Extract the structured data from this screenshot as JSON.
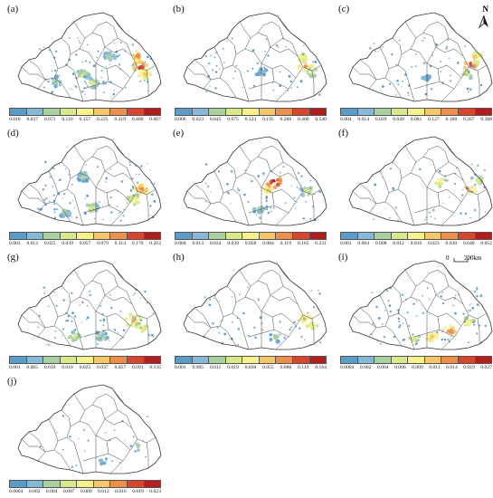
{
  "north_label": "N",
  "scale": {
    "zero": "0",
    "distance": "200km"
  },
  "legend_colors": [
    "#5b9bc8",
    "#86b9d6",
    "#a8cf9e",
    "#d8e98a",
    "#f6f18a",
    "#f6c66a",
    "#ed8f4a",
    "#d8452c",
    "#b21d1d"
  ],
  "panels": [
    {
      "label": "(a)",
      "ticks": [
        "0.010",
        "0.037",
        "0.071",
        "0.110",
        "0.157",
        "0.225",
        "0.319",
        "0.460",
        "0.667"
      ]
    },
    {
      "label": "(b)",
      "ticks": [
        "0.006",
        "0.023",
        "0.045",
        "0.075",
        "0.123",
        "0.195",
        "0.288",
        "0.400",
        "0.540"
      ]
    },
    {
      "label": "(c)",
      "ticks": [
        "0.004",
        "0.014",
        "0.029",
        "0.049",
        "0.081",
        "0.127",
        "0.188",
        "0.267",
        "0.368"
      ]
    },
    {
      "label": "(d)",
      "ticks": [
        "0.003",
        "0.012",
        "0.025",
        "0.039",
        "0.057",
        "0.079",
        "0.114",
        "0.170",
        "0.263"
      ]
    },
    {
      "label": "(e)",
      "ticks": [
        "0.004",
        "0.013",
        "0.024",
        "0.039",
        "0.058",
        "0.084",
        "0.119",
        "0.165",
        "0.231"
      ]
    },
    {
      "label": "(f)",
      "ticks": [
        "0.001",
        "0.004",
        "0.008",
        "0.012",
        "0.016",
        "0.023",
        "0.030",
        "0.040",
        "0.052"
      ]
    },
    {
      "label": "(g)",
      "ticks": [
        "0.001",
        "0.005",
        "0.010",
        "0.016",
        "0.025",
        "0.037",
        "0.057",
        "0.091",
        "0.135"
      ]
    },
    {
      "label": "(h)",
      "ticks": [
        "0.001",
        "0.005",
        "0.011",
        "0.019",
        "0.030",
        "0.055",
        "0.088",
        "0.119",
        "0.164"
      ]
    },
    {
      "label": "(i)",
      "ticks": [
        "0.0004",
        "0.002",
        "0.004",
        "0.006",
        "0.009",
        "0.011",
        "0.014",
        "0.019",
        "0.027"
      ]
    },
    {
      "label": "(j)",
      "ticks": [
        "0.0004",
        "0.002",
        "0.004",
        "0.007",
        "0.009",
        "0.012",
        "0.016",
        "0.019",
        "0.023"
      ]
    }
  ]
}
